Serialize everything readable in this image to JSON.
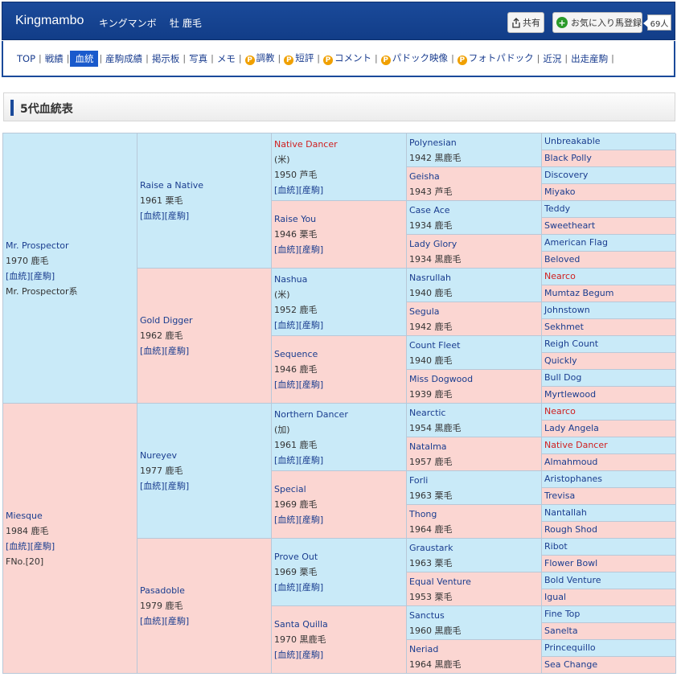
{
  "header": {
    "name": "Kingmambo",
    "kana": "キングマンボ",
    "sex_color": "牡 鹿毛",
    "share_label": "共有",
    "fav_label": "お気に入り馬登録",
    "fav_count": "69人"
  },
  "nav": {
    "items": [
      {
        "label": "TOP"
      },
      {
        "label": "戦績"
      },
      {
        "label": "血統",
        "active": true
      },
      {
        "label": "産駒成績"
      },
      {
        "label": "掲示板"
      },
      {
        "label": "写真"
      },
      {
        "label": "メモ"
      },
      {
        "label": "調教",
        "premium": true
      },
      {
        "label": "短評",
        "premium": true
      },
      {
        "label": "コメント",
        "premium": true
      },
      {
        "label": "パドック映像",
        "premium": true
      },
      {
        "label": "フォトパドック",
        "premium": true
      },
      {
        "label": "近況"
      },
      {
        "label": "出走産駒"
      }
    ]
  },
  "section_title": "5代血統表",
  "pedigree": {
    "g1": [
      {
        "name": "Mr. Prospector",
        "info": "1970 鹿毛",
        "links": "[血統][産駒]",
        "extra": "Mr. Prospector系",
        "sex": "m"
      },
      {
        "name": "Miesque",
        "info": "1984 鹿毛",
        "links": "[血統][産駒]",
        "extra": "FNo.[20]",
        "sex": "f"
      }
    ],
    "g2": [
      {
        "name": "Raise a Native",
        "info": "1961 栗毛",
        "links": "[血統][産駒]",
        "sex": "m"
      },
      {
        "name": "Gold Digger",
        "info": "1962 鹿毛",
        "links": "[血統][産駒]",
        "sex": "f"
      },
      {
        "name": "Nureyev",
        "info": "1977 鹿毛",
        "links": "[血統][産駒]",
        "sex": "m"
      },
      {
        "name": "Pasadoble",
        "info": "1979 鹿毛",
        "links": "[血統][産駒]",
        "sex": "f"
      }
    ],
    "g3": [
      {
        "name": "Native Dancer",
        "origin": "(米)",
        "info": "1950 芦毛",
        "links": "[血統][産駒]",
        "sex": "m",
        "red": true
      },
      {
        "name": "Raise You",
        "info": "1946 栗毛",
        "links": "[血統][産駒]",
        "sex": "f"
      },
      {
        "name": "Nashua",
        "origin": "(米)",
        "info": "1952 鹿毛",
        "links": "[血統][産駒]",
        "sex": "m"
      },
      {
        "name": "Sequence",
        "info": "1946 鹿毛",
        "links": "[血統][産駒]",
        "sex": "f"
      },
      {
        "name": "Northern Dancer",
        "origin": "(加)",
        "info": "1961 鹿毛",
        "links": "[血統][産駒]",
        "sex": "m"
      },
      {
        "name": "Special",
        "info": "1969 鹿毛",
        "links": "[血統][産駒]",
        "sex": "f"
      },
      {
        "name": "Prove Out",
        "info": "1969 栗毛",
        "links": "[血統][産駒]",
        "sex": "m"
      },
      {
        "name": "Santa Quilla",
        "info": "1970 黒鹿毛",
        "links": "[血統][産駒]",
        "sex": "f"
      }
    ],
    "g4": [
      {
        "name": "Polynesian",
        "info": "1942 黒鹿毛",
        "sex": "m"
      },
      {
        "name": "Geisha",
        "info": "1943 芦毛",
        "sex": "f"
      },
      {
        "name": "Case Ace",
        "info": "1934 鹿毛",
        "sex": "m"
      },
      {
        "name": "Lady Glory",
        "info": "1934 黒鹿毛",
        "sex": "f"
      },
      {
        "name": "Nasrullah",
        "info": "1940 鹿毛",
        "sex": "m"
      },
      {
        "name": "Segula",
        "info": "1942 鹿毛",
        "sex": "f"
      },
      {
        "name": "Count Fleet",
        "info": "1940 鹿毛",
        "sex": "m"
      },
      {
        "name": "Miss Dogwood",
        "info": "1939 鹿毛",
        "sex": "f"
      },
      {
        "name": "Nearctic",
        "info": "1954 黒鹿毛",
        "sex": "m"
      },
      {
        "name": "Natalma",
        "info": "1957 鹿毛",
        "sex": "f"
      },
      {
        "name": "Forli",
        "info": "1963 栗毛",
        "sex": "m"
      },
      {
        "name": "Thong",
        "info": "1964 鹿毛",
        "sex": "f"
      },
      {
        "name": "Graustark",
        "info": "1963 栗毛",
        "sex": "m"
      },
      {
        "name": "Equal Venture",
        "info": "1953 栗毛",
        "sex": "f"
      },
      {
        "name": "Sanctus",
        "info": "1960 黒鹿毛",
        "sex": "m"
      },
      {
        "name": "Neriad",
        "info": "1964 黒鹿毛",
        "sex": "f"
      }
    ],
    "g5": [
      {
        "name": "Unbreakable",
        "sex": "m"
      },
      {
        "name": "Black Polly",
        "sex": "f"
      },
      {
        "name": "Discovery",
        "sex": "m"
      },
      {
        "name": "Miyako",
        "sex": "f"
      },
      {
        "name": "Teddy",
        "sex": "m"
      },
      {
        "name": "Sweetheart",
        "sex": "f"
      },
      {
        "name": "American Flag",
        "sex": "m"
      },
      {
        "name": "Beloved",
        "sex": "f"
      },
      {
        "name": "Nearco",
        "sex": "m",
        "red": true
      },
      {
        "name": "Mumtaz Begum",
        "sex": "f"
      },
      {
        "name": "Johnstown",
        "sex": "m"
      },
      {
        "name": "Sekhmet",
        "sex": "f"
      },
      {
        "name": "Reigh Count",
        "sex": "m"
      },
      {
        "name": "Quickly",
        "sex": "f"
      },
      {
        "name": "Bull Dog",
        "sex": "m"
      },
      {
        "name": "Myrtlewood",
        "sex": "f"
      },
      {
        "name": "Nearco",
        "sex": "m",
        "red": true
      },
      {
        "name": "Lady Angela",
        "sex": "f"
      },
      {
        "name": "Native Dancer",
        "sex": "m",
        "red": true
      },
      {
        "name": "Almahmoud",
        "sex": "f"
      },
      {
        "name": "Aristophanes",
        "sex": "m"
      },
      {
        "name": "Trevisa",
        "sex": "f"
      },
      {
        "name": "Nantallah",
        "sex": "m"
      },
      {
        "name": "Rough Shod",
        "sex": "f"
      },
      {
        "name": "Ribot",
        "sex": "m"
      },
      {
        "name": "Flower Bowl",
        "sex": "f"
      },
      {
        "name": "Bold Venture",
        "sex": "m"
      },
      {
        "name": "Igual",
        "sex": "f"
      },
      {
        "name": "Fine Top",
        "sex": "m"
      },
      {
        "name": "Sanelta",
        "sex": "f"
      },
      {
        "name": "Princequillo",
        "sex": "m"
      },
      {
        "name": "Sea Change",
        "sex": "f"
      }
    ]
  }
}
